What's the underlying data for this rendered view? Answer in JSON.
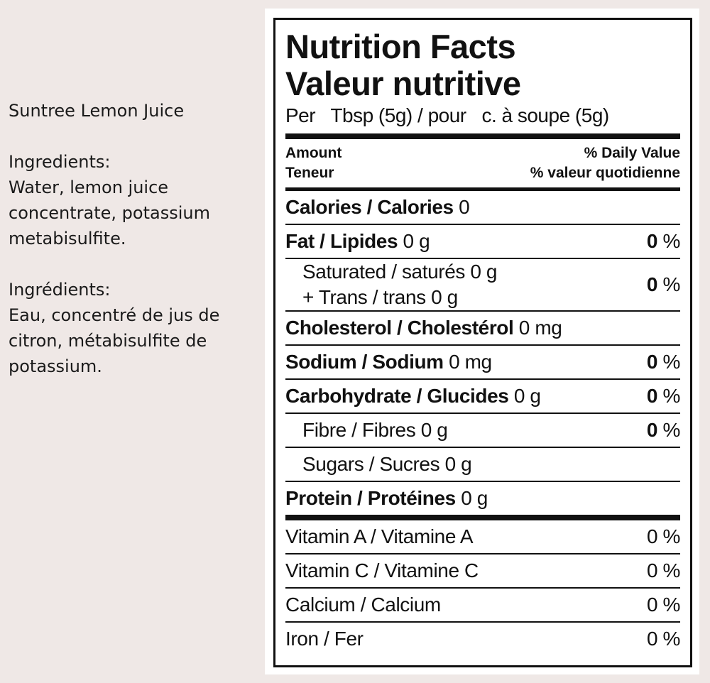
{
  "product": {
    "name": "Suntree Lemon Juice",
    "ingredients_en_label": "Ingredients:",
    "ingredients_en": "Water, lemon juice concentrate, potassium metabisulfite.",
    "ingredients_fr_label": "Ingrédients:",
    "ingredients_fr": "Eau, concentré de jus de citron, métabisulfite de potassium."
  },
  "label": {
    "title_en": "Nutrition Facts",
    "title_fr": "Valeur nutritive",
    "serving": "Per   Tbsp (5g) / pour   c. à soupe (5g)",
    "amount_en": "Amount",
    "amount_fr": "Teneur",
    "dv_en": "% Daily Value",
    "dv_fr": "% valeur quotidienne",
    "calories_label": "Calories / Calories",
    "calories_value": "0",
    "fat_label": "Fat / Lipides",
    "fat_value": "0 g",
    "fat_pct": "0",
    "saturated": "Saturated / saturés 0 g",
    "trans": "+ Trans / trans 0 g",
    "sat_trans_pct": "0",
    "cholesterol_label": "Cholesterol / Cholestérol",
    "cholesterol_value": "0 mg",
    "sodium_label": "Sodium / Sodium",
    "sodium_value": "0 mg",
    "sodium_pct": "0",
    "carb_label": "Carbohydrate / Glucides",
    "carb_value": "0 g",
    "carb_pct": "0",
    "fibre": "Fibre / Fibres 0 g",
    "fibre_pct": "0",
    "sugars": "Sugars / Sucres 0 g",
    "protein_label": "Protein / Protéines",
    "protein_value": "0 g",
    "percent_sign": "%",
    "vitamins": [
      {
        "name": "Vitamin A / Vitamine A",
        "pct": "0 %"
      },
      {
        "name": "Vitamin C / Vitamine C",
        "pct": "0 %"
      },
      {
        "name": "Calcium / Calcium",
        "pct": "0 %"
      },
      {
        "name": "Iron / Fer",
        "pct": "0 %"
      }
    ]
  }
}
